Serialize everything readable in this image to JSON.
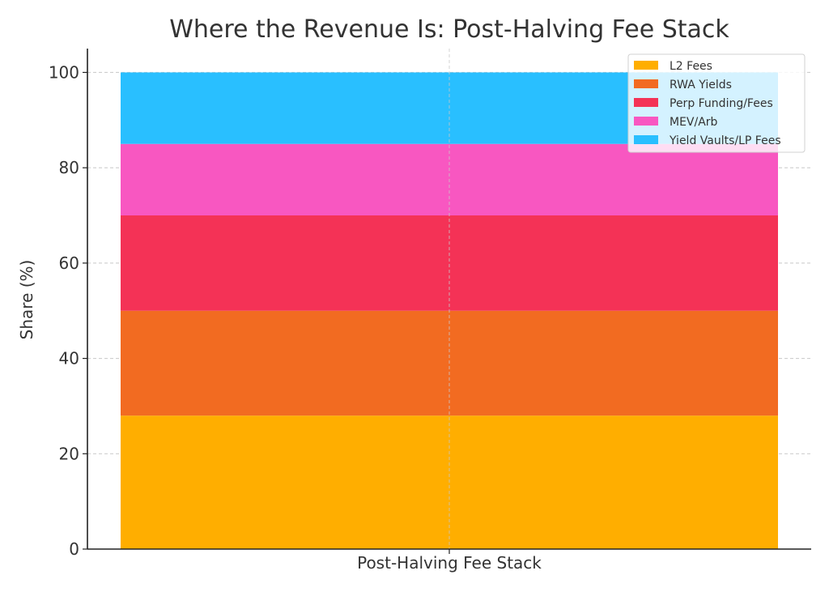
{
  "chart_data": {
    "type": "bar",
    "stacked": true,
    "title": "Where the Revenue Is: Post-Halving Fee Stack",
    "xlabel": "",
    "ylabel": "Share (%)",
    "categories": [
      "Post-Halving Fee Stack"
    ],
    "ylim": [
      0,
      105
    ],
    "yticks": [
      0,
      20,
      40,
      60,
      80,
      100
    ],
    "grid": true,
    "legend_position": "top-right",
    "series": [
      {
        "name": "L2 Fees",
        "values": [
          28
        ],
        "color": "#FFAE00"
      },
      {
        "name": "RWA Yields",
        "values": [
          22
        ],
        "color": "#F26B21"
      },
      {
        "name": "Perp Funding/Fees",
        "values": [
          20
        ],
        "color": "#F43256"
      },
      {
        "name": "MEV/Arb",
        "values": [
          15
        ],
        "color": "#F857C1"
      },
      {
        "name": "Yield Vaults/LP Fees",
        "values": [
          15
        ],
        "color": "#29BFFF"
      }
    ]
  }
}
